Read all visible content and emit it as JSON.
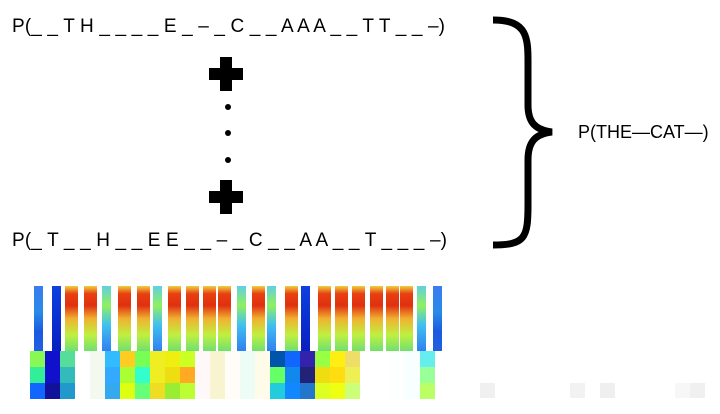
{
  "sequences": {
    "top": "P(_ _ T H _ _ _ _ E _ – _ C _ _ A A A _ _ T T _ _ –)",
    "bottom": "P(_ T  _ _ H _ _ E E _ _ – _ C _ _ A A _ _ T _ _ _ –)"
  },
  "result": "P(THE—CAT—)",
  "spectrogram_strips": [
    "blue",
    "blue-dark",
    "warm",
    "warm",
    "mixed",
    "warm",
    "warm",
    "mixed",
    "warm",
    "warm",
    "warm",
    "warm",
    "mixed",
    "warm",
    "mixed",
    "warm",
    "blue-dark",
    "warm",
    "warm",
    "warm",
    "warm",
    "warm",
    "warm",
    "mixed",
    "blue"
  ],
  "probability_grid": [
    [
      "#88f855",
      "#33ee99",
      "#1166ff"
    ],
    [
      "#1111cc",
      "#1111cc",
      "#111199"
    ],
    [
      "#55dd99",
      "#33bbbb",
      "#2299cc"
    ],
    [
      "#ffffff",
      "#ffffff",
      "#ffffff"
    ],
    [
      "#f3f9ee",
      "#f3f9ee",
      "#f3f9ee"
    ],
    [
      "#33bbff",
      "#33aaff",
      "#33aaee"
    ],
    [
      "#ffcc22",
      "#aaff33",
      "#ddff11"
    ],
    [
      "#77ff55",
      "#33ffcc",
      "#66ff77"
    ],
    [
      "#eeee22",
      "#eeee22",
      "#eedd22"
    ],
    [
      "#eeee11",
      "#eedd11",
      "#99ee33"
    ],
    [
      "#ccff22",
      "#ffaa22",
      "#bbff33"
    ],
    [
      "#fff8f8",
      "#fff8f8",
      "#fff8f8"
    ],
    [
      "#f8f4d0",
      "#f8f4d0",
      "#f8f4d0"
    ],
    [
      "#fffdf8",
      "#fffdf8",
      "#fffdf8"
    ],
    [
      "#eefcf6",
      "#eefcf6",
      "#eefcf6"
    ],
    [
      "#fefbe8",
      "#fefbe8",
      "#fefbe8"
    ],
    [
      "#0055aa",
      "#66ff66",
      "#22ccdd"
    ],
    [
      "#1166ff",
      "#1188ee",
      "#1188ff"
    ],
    [
      "#3322aa",
      "#222277",
      "#2277cc"
    ],
    [
      "#99ff44",
      "#eedd11",
      "#ddff22"
    ],
    [
      "#ffee11",
      "#ffdd11",
      "#eeff11"
    ],
    [
      "#eedd66",
      "#eeee55",
      "#ccff77"
    ],
    [
      "#ffffff",
      "#ffffff",
      "#ffffff"
    ],
    [
      "#ffffff",
      "#ffffff",
      "#ffffff"
    ],
    [
      "#fdffff",
      "#fdffff",
      "#fdffff"
    ],
    [
      "#f8ffff",
      "#f8ffff",
      "#f8ffff"
    ],
    [
      "#66eeee",
      "#99ff99",
      "#bbff66"
    ]
  ],
  "faint_cells": [
    "#f0f0f0",
    "#f2f2f2",
    "#efefef",
    "#f7f7f7",
    "#f0f0f0"
  ]
}
